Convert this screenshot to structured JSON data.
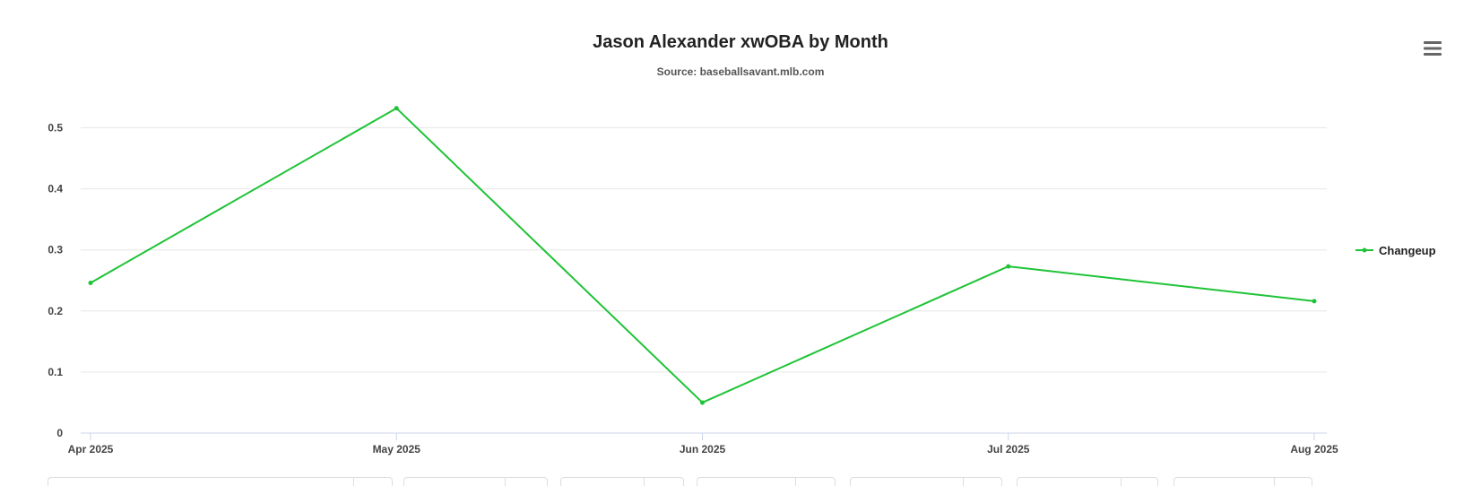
{
  "chart_data": {
    "type": "line",
    "title": "Jason Alexander xwOBA by Month",
    "subtitle": "Source: baseballsavant.mlb.com",
    "categories": [
      "Apr 2025",
      "May 2025",
      "Jun 2025",
      "Jul 2025",
      "Aug 2025"
    ],
    "series": [
      {
        "name": "Changeup",
        "color": "#1fc337",
        "values": [
          0.246,
          0.532,
          0.05,
          0.273,
          0.216
        ]
      }
    ],
    "yticks": [
      "0",
      "0.1",
      "0.2",
      "0.3",
      "0.4",
      "0.5"
    ],
    "ylim": [
      0,
      0.5
    ],
    "grid": true,
    "legend_position": "right"
  },
  "menu": {
    "icon": "hamburger-menu-icon"
  }
}
